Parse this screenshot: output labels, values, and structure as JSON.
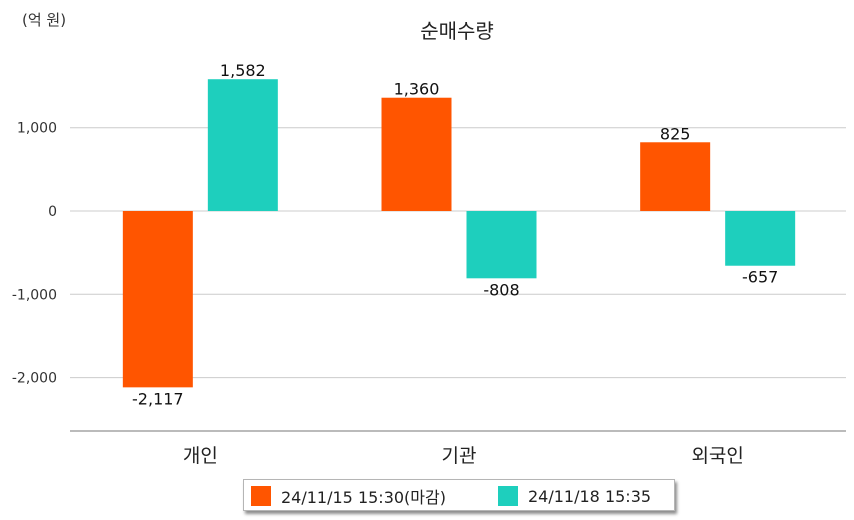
{
  "unit_label": "(억 원)",
  "chart_data": {
    "type": "bar",
    "title": "순매수량",
    "categories": [
      "개인",
      "기관",
      "외국인"
    ],
    "series": [
      {
        "name": "24/11/15 15:30(마감)",
        "color": "#ff5500",
        "values": [
          -2117,
          1360,
          825
        ],
        "labels": [
          "-2,117",
          "1,360",
          "825"
        ]
      },
      {
        "name": "24/11/18 15:35",
        "color": "#1ecfbd",
        "values": [
          1582,
          -808,
          -657
        ],
        "labels": [
          "1,582",
          "-808",
          "-657"
        ]
      }
    ],
    "yticks": [
      1000,
      0,
      -1000,
      -2000
    ],
    "ytick_labels": [
      "1,000",
      "0",
      "-1,000",
      "-2,000"
    ],
    "ylim": [
      -2650,
      1750
    ],
    "grid": true,
    "legend_position": "bottom"
  }
}
